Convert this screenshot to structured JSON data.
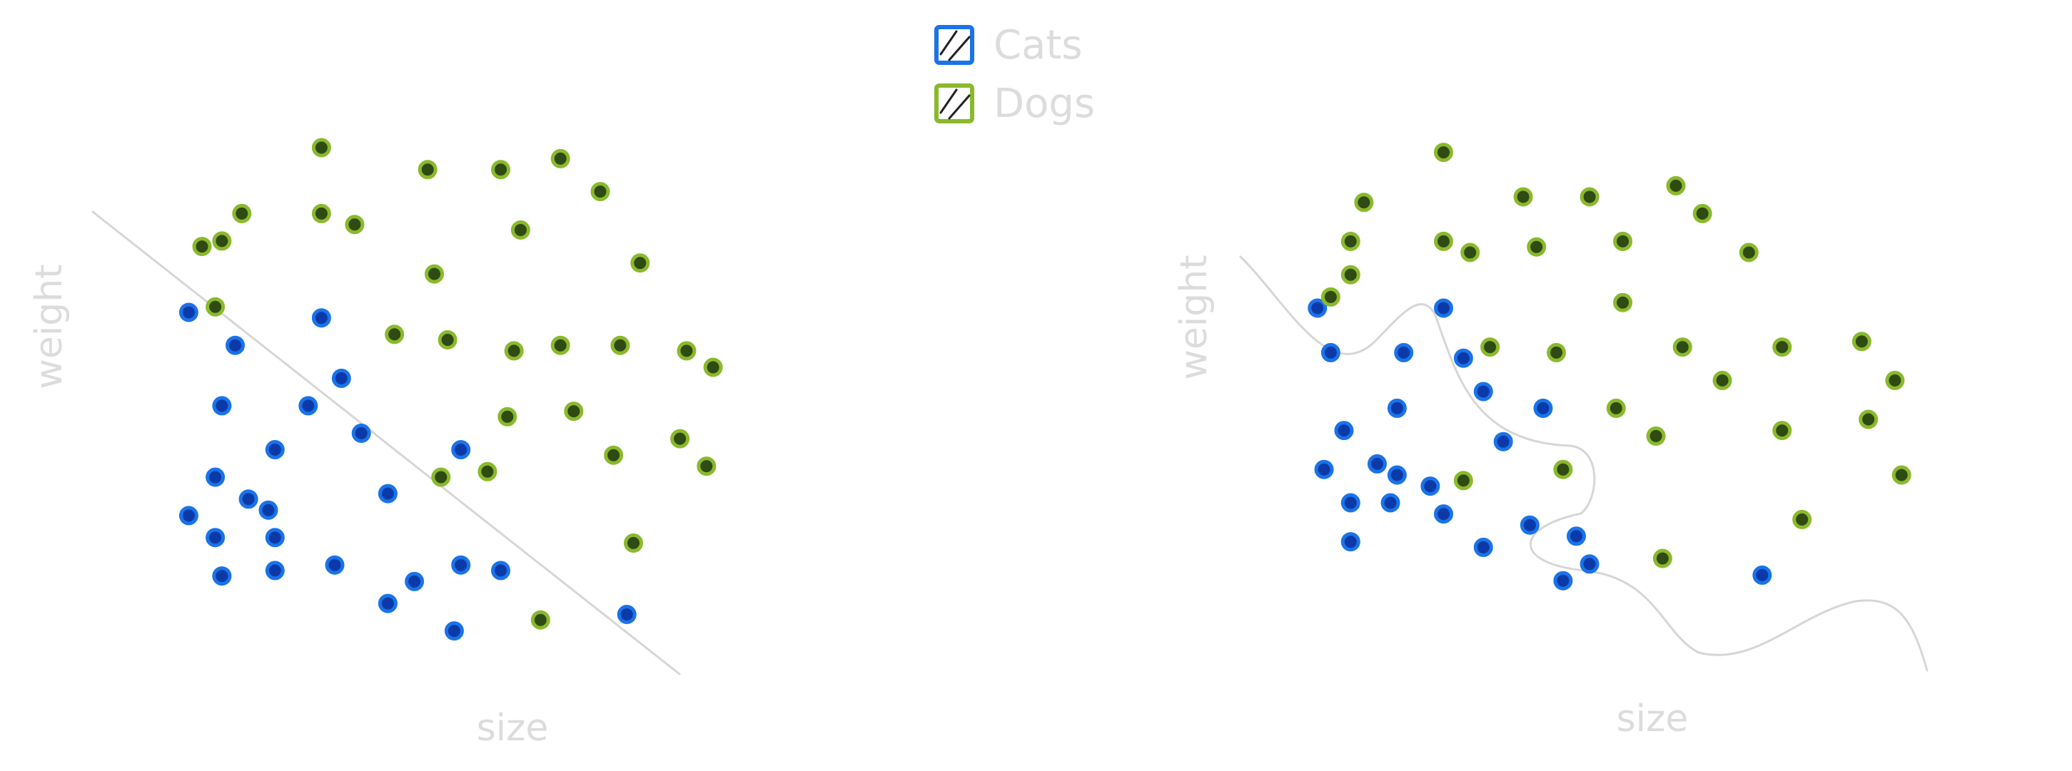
{
  "chart_data": [
    {
      "type": "scatter",
      "xlabel": "size",
      "ylabel": "weight",
      "xlim": [
        0,
        100
      ],
      "ylim": [
        0,
        100
      ],
      "grid": false,
      "decision_boundary": "linear",
      "series": [
        {
          "name": "Cats",
          "color": "#1a73e8",
          "points": [
            [
              8,
              60
            ],
            [
              15,
              54
            ],
            [
              28,
              59
            ],
            [
              13,
              43
            ],
            [
              26,
              43
            ],
            [
              31,
              48
            ],
            [
              34,
              38
            ],
            [
              21,
              35
            ],
            [
              12,
              30
            ],
            [
              17,
              26
            ],
            [
              20,
              24
            ],
            [
              8,
              23
            ],
            [
              12,
              19
            ],
            [
              21,
              19
            ],
            [
              38,
              27
            ],
            [
              49,
              35
            ],
            [
              13,
              12
            ],
            [
              21,
              13
            ],
            [
              30,
              14
            ],
            [
              42,
              11
            ],
            [
              49,
              14
            ],
            [
              55,
              13
            ],
            [
              38,
              7
            ],
            [
              48,
              2
            ],
            [
              74,
              5
            ]
          ]
        },
        {
          "name": "Dogs",
          "color": "#8ab92c",
          "points": [
            [
              28,
              90
            ],
            [
              16,
              78
            ],
            [
              13,
              73
            ],
            [
              44,
              86
            ],
            [
              55,
              86
            ],
            [
              64,
              88
            ],
            [
              70,
              82
            ],
            [
              58,
              75
            ],
            [
              28,
              78
            ],
            [
              33,
              76
            ],
            [
              45,
              67
            ],
            [
              10,
              72
            ],
            [
              12,
              61
            ],
            [
              57,
              53
            ],
            [
              76,
              69
            ],
            [
              39,
              56
            ],
            [
              47,
              55
            ],
            [
              64,
              54
            ],
            [
              73,
              54
            ],
            [
              83,
              53
            ],
            [
              87,
              50
            ],
            [
              56,
              41
            ],
            [
              66,
              42
            ],
            [
              72,
              34
            ],
            [
              82,
              37
            ],
            [
              86,
              32
            ],
            [
              46,
              30
            ],
            [
              53,
              31
            ],
            [
              75,
              18
            ],
            [
              61,
              4
            ]
          ]
        }
      ]
    },
    {
      "type": "scatter",
      "xlabel": "size",
      "ylabel": "weight",
      "xlim": [
        0,
        100
      ],
      "ylim": [
        0,
        100
      ],
      "grid": false,
      "decision_boundary": "nonlinear",
      "series": [
        {
          "name": "Cats",
          "color": "#1a73e8",
          "points": [
            [
              6,
              60
            ],
            [
              25,
              60
            ],
            [
              8,
              52
            ],
            [
              19,
              52
            ],
            [
              28,
              51
            ],
            [
              31,
              45
            ],
            [
              18,
              42
            ],
            [
              40,
              42
            ],
            [
              10,
              38
            ],
            [
              34,
              36
            ],
            [
              7,
              31
            ],
            [
              15,
              32
            ],
            [
              18,
              30
            ],
            [
              23,
              28
            ],
            [
              17,
              25
            ],
            [
              11,
              25
            ],
            [
              25,
              23
            ],
            [
              38,
              21
            ],
            [
              45,
              19
            ],
            [
              11,
              18
            ],
            [
              31,
              17
            ],
            [
              47,
              14
            ],
            [
              43,
              11
            ],
            [
              73,
              12
            ]
          ]
        },
        {
          "name": "Dogs",
          "color": "#8ab92c",
          "points": [
            [
              25,
              88
            ],
            [
              13,
              79
            ],
            [
              11,
              72
            ],
            [
              37,
              80
            ],
            [
              47,
              80
            ],
            [
              60,
              82
            ],
            [
              64,
              77
            ],
            [
              52,
              72
            ],
            [
              25,
              72
            ],
            [
              29,
              70
            ],
            [
              39,
              71
            ],
            [
              71,
              70
            ],
            [
              8,
              62
            ],
            [
              11,
              66
            ],
            [
              52,
              61
            ],
            [
              32,
              53
            ],
            [
              42,
              52
            ],
            [
              61,
              53
            ],
            [
              76,
              53
            ],
            [
              88,
              54
            ],
            [
              93,
              47
            ],
            [
              51,
              42
            ],
            [
              57,
              37
            ],
            [
              67,
              47
            ],
            [
              89,
              40
            ],
            [
              76,
              38
            ],
            [
              94,
              30
            ],
            [
              28,
              29
            ],
            [
              43,
              31
            ],
            [
              79,
              22
            ],
            [
              58,
              15
            ]
          ]
        }
      ]
    }
  ],
  "legend": {
    "placement": "top-center",
    "entries": [
      {
        "label": "Cats",
        "color": "#1a73e8"
      },
      {
        "label": "Dogs",
        "color": "#8ab92c"
      }
    ]
  }
}
